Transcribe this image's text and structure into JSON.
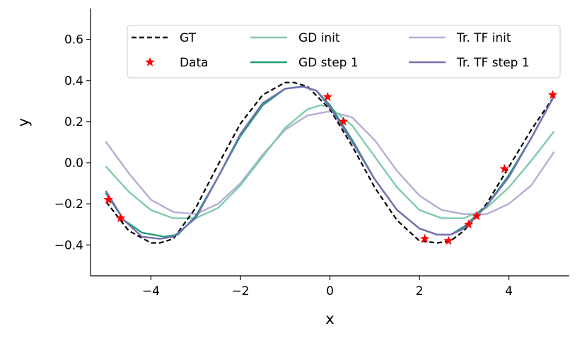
{
  "chart_data": {
    "type": "line",
    "title": "",
    "xlabel": "x",
    "ylabel": "y",
    "xlim": [
      -5.35,
      5.35
    ],
    "ylim": [
      -0.55,
      0.75
    ],
    "xticks": [
      -4,
      -2,
      0,
      2,
      4
    ],
    "yticks": [
      -0.4,
      -0.2,
      0.0,
      0.2,
      0.4,
      0.6
    ],
    "xtick_labels": [
      "−4",
      "−2",
      "0",
      "2",
      "4"
    ],
    "ytick_labels": [
      "−0.4",
      "−0.2",
      "0.0",
      "0.2",
      "0.4",
      "0.6"
    ],
    "grid": false,
    "legend_position": "top-right",
    "series": [
      {
        "name": "GT",
        "color": "#000000",
        "style": "dashed",
        "x": [
          -5.0,
          -4.5,
          -4.0,
          -3.8,
          -3.5,
          -3.0,
          -2.5,
          -2.0,
          -1.5,
          -1.0,
          -0.8,
          -0.5,
          0.0,
          0.5,
          1.0,
          1.5,
          2.0,
          2.4,
          2.7,
          3.0,
          3.5,
          4.0,
          4.5,
          5.0
        ],
        "y": [
          -0.19,
          -0.33,
          -0.39,
          -0.39,
          -0.37,
          -0.22,
          -0.01,
          0.19,
          0.33,
          0.39,
          0.39,
          0.37,
          0.26,
          0.08,
          -0.12,
          -0.28,
          -0.38,
          -0.39,
          -0.38,
          -0.33,
          -0.2,
          -0.02,
          0.16,
          0.32
        ]
      },
      {
        "name": "GD init",
        "color": "#7ecbad",
        "style": "solid",
        "x": [
          -5.0,
          -4.5,
          -4.0,
          -3.5,
          -3.0,
          -2.5,
          -2.0,
          -1.5,
          -1.0,
          -0.5,
          -0.2,
          0.0,
          0.5,
          1.0,
          1.5,
          2.0,
          2.5,
          3.0,
          3.5,
          4.0,
          4.5,
          5.0
        ],
        "y": [
          -0.02,
          -0.14,
          -0.23,
          -0.27,
          -0.27,
          -0.22,
          -0.11,
          0.03,
          0.17,
          0.26,
          0.28,
          0.27,
          0.18,
          0.03,
          -0.12,
          -0.23,
          -0.27,
          -0.27,
          -0.22,
          -0.12,
          0.01,
          0.15
        ]
      },
      {
        "name": "GD step 1",
        "color": "#1b9e77",
        "style": "solid",
        "x": [
          -5.0,
          -4.6,
          -4.2,
          -3.7,
          -3.4,
          -3.0,
          -2.5,
          -2.0,
          -1.5,
          -1.0,
          -0.6,
          -0.3,
          0.0,
          0.5,
          1.0,
          1.5,
          2.0,
          2.4,
          2.7,
          3.0,
          3.5,
          4.0,
          4.5,
          5.0
        ],
        "y": [
          -0.15,
          -0.28,
          -0.34,
          -0.36,
          -0.35,
          -0.26,
          -0.07,
          0.13,
          0.28,
          0.36,
          0.37,
          0.35,
          0.28,
          0.11,
          -0.08,
          -0.23,
          -0.32,
          -0.35,
          -0.35,
          -0.31,
          -0.21,
          -0.06,
          0.12,
          0.32
        ]
      },
      {
        "name": "Tr. TF init",
        "color": "#b3aed4",
        "style": "solid",
        "x": [
          -5.0,
          -4.5,
          -4.0,
          -3.5,
          -3.0,
          -2.5,
          -2.0,
          -1.5,
          -1.0,
          -0.5,
          0.0,
          0.5,
          1.0,
          1.5,
          2.0,
          2.5,
          3.0,
          3.5,
          4.0,
          4.5,
          5.0
        ],
        "y": [
          0.1,
          -0.05,
          -0.18,
          -0.24,
          -0.25,
          -0.2,
          -0.1,
          0.04,
          0.16,
          0.23,
          0.25,
          0.22,
          0.11,
          -0.04,
          -0.16,
          -0.23,
          -0.25,
          -0.25,
          -0.2,
          -0.11,
          0.05
        ]
      },
      {
        "name": "Tr. TF step 1",
        "color": "#7570b3",
        "style": "solid",
        "x": [
          -5.0,
          -4.6,
          -4.2,
          -3.8,
          -3.5,
          -3.0,
          -2.5,
          -2.0,
          -1.5,
          -1.0,
          -0.6,
          -0.3,
          0.0,
          0.5,
          1.0,
          1.5,
          2.0,
          2.4,
          2.7,
          3.0,
          3.5,
          4.0,
          4.5,
          5.0
        ],
        "y": [
          -0.14,
          -0.28,
          -0.36,
          -0.37,
          -0.36,
          -0.27,
          -0.07,
          0.14,
          0.29,
          0.36,
          0.37,
          0.35,
          0.27,
          0.1,
          -0.08,
          -0.23,
          -0.32,
          -0.35,
          -0.35,
          -0.32,
          -0.21,
          -0.07,
          0.12,
          0.32
        ]
      },
      {
        "name": "Data",
        "color": "#ff0000",
        "style": "markers",
        "marker": "star",
        "x": [
          -4.95,
          -4.68,
          -0.05,
          0.3,
          2.12,
          2.65,
          3.1,
          3.28,
          3.9,
          4.98
        ],
        "y": [
          -0.18,
          -0.27,
          0.32,
          0.2,
          -0.37,
          -0.38,
          -0.3,
          -0.26,
          -0.03,
          0.33
        ]
      }
    ],
    "legend_order": [
      "GT",
      "Data",
      "GD init",
      "GD step 1",
      "Tr. TF init",
      "Tr. TF step 1"
    ]
  }
}
